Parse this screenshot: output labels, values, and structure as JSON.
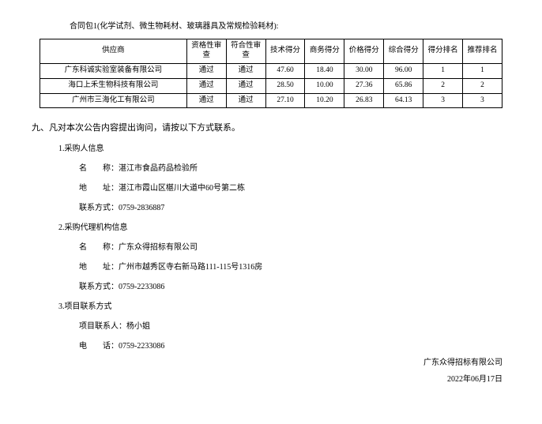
{
  "contract_header": "合同包1(化学试剂、微生物耗材、玻璃器具及常规检验耗材):",
  "table": {
    "columns": [
      "供应商",
      "资格性审查",
      "符合性审查",
      "技术得分",
      "商务得分",
      "价格得分",
      "综合得分",
      "得分排名",
      "推荐排名"
    ],
    "rows": [
      [
        "广东科诚实验室装备有限公司",
        "通过",
        "通过",
        "47.60",
        "18.40",
        "30.00",
        "96.00",
        "1",
        "1"
      ],
      [
        "海口上禾生物科技有限公司",
        "通过",
        "通过",
        "28.50",
        "10.00",
        "27.36",
        "65.86",
        "2",
        "2"
      ],
      [
        "广州市三海化工有限公司",
        "通过",
        "通过",
        "27.10",
        "10.20",
        "26.83",
        "64.13",
        "3",
        "3"
      ]
    ]
  },
  "section9_title": "九、凡对本次公告内容提出询问，请按以下方式联系。",
  "buyer": {
    "heading": "1.采购人信息",
    "name_label": "名　　称：",
    "name": "湛江市食品药品检验所",
    "addr_label": "地　　址：",
    "addr": "湛江市霞山区椹川大道中60号第二栋",
    "contact_label": "联系方式：",
    "contact": "0759-2836887"
  },
  "agent": {
    "heading": "2.采购代理机构信息",
    "name_label": "名　　称：",
    "name": "广东众得招标有限公司",
    "addr_label": "地　　址：",
    "addr": "广州市越秀区寺右新马路111-115号1316房",
    "contact_label": "联系方式：",
    "contact": "0759-2233086"
  },
  "project": {
    "heading": "3.项目联系方式",
    "person_label": "项目联系人：",
    "person": "杨小姐",
    "tel_label": "电　　话：",
    "tel": "0759-2233086"
  },
  "signoff_company": "广东众得招标有限公司",
  "signoff_date": "2022年06月17日"
}
